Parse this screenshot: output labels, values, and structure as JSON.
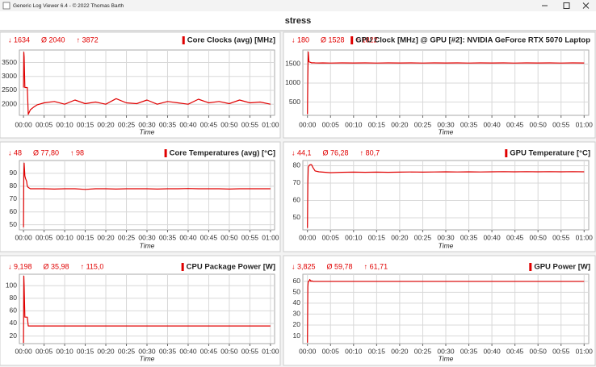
{
  "window_title": "Generic Log Viewer 6.4 - © 2022 Thomas Barth",
  "header": "stress",
  "chart_data": [
    {
      "type": "line",
      "title": "Core Clocks (avg) [MHz]",
      "stats": [
        "↓ 1634",
        "Ø 2040",
        "↑ 3872"
      ],
      "xlabel": "Time",
      "color": "#e00000",
      "x": [
        0,
        5,
        10,
        20,
        30,
        45,
        55,
        70,
        100,
        150,
        200,
        300,
        450,
        600,
        750,
        900,
        1050,
        1200,
        1350,
        1500,
        1650,
        1800,
        1950,
        2100,
        2250,
        2400,
        2550,
        2700,
        2850,
        3000,
        3150,
        3300,
        3450,
        3600
      ],
      "values": [
        2600,
        3872,
        3700,
        2600,
        2600,
        2600,
        2600,
        1634,
        1800,
        1900,
        1980,
        2050,
        2100,
        2000,
        2150,
        2020,
        2080,
        2000,
        2200,
        2050,
        2020,
        2150,
        2000,
        2100,
        2050,
        2000,
        2180,
        2050,
        2100,
        2020,
        2150,
        2050,
        2080,
        2000
      ],
      "xlim": [
        -60,
        3660
      ],
      "ylim": [
        1600,
        3950
      ],
      "yticks": [
        2000,
        2500,
        3000,
        3500
      ],
      "xticks": [
        {
          "value": 0,
          "label": "00:00"
        },
        {
          "value": 300,
          "label": "00:05"
        },
        {
          "value": 600,
          "label": "00:10"
        },
        {
          "value": 900,
          "label": "00:15"
        },
        {
          "value": 1200,
          "label": "00:20"
        },
        {
          "value": 1500,
          "label": "00:25"
        },
        {
          "value": 1800,
          "label": "00:30"
        },
        {
          "value": 2100,
          "label": "00:35"
        },
        {
          "value": 2400,
          "label": "00:40"
        },
        {
          "value": 2700,
          "label": "00:45"
        },
        {
          "value": 3000,
          "label": "00:50"
        },
        {
          "value": 3300,
          "label": "00:55"
        },
        {
          "value": 3600,
          "label": "01:00"
        }
      ]
    },
    {
      "type": "line",
      "title": "GPU Clock [MHz] @ GPU [#2]: NVIDIA GeForce RTX 5070 Laptop",
      "stats": [
        "↓ 180",
        "Ø 1528",
        "↑ 1822"
      ],
      "xlabel": "Time",
      "color": "#e00000",
      "x": [
        0,
        5,
        10,
        20,
        30,
        45,
        55,
        70,
        100,
        150,
        200,
        300,
        450,
        600,
        750,
        900,
        1050,
        1200,
        1350,
        1500,
        1650,
        1800,
        1950,
        2100,
        2250,
        2400,
        2550,
        2700,
        2850,
        3000,
        3150,
        3300,
        3450,
        3600
      ],
      "values": [
        180,
        1200,
        1822,
        1560,
        1550,
        1540,
        1530,
        1535,
        1530,
        1528,
        1530,
        1525,
        1530,
        1528,
        1530,
        1525,
        1530,
        1528,
        1530,
        1525,
        1530,
        1528,
        1530,
        1525,
        1530,
        1528,
        1530,
        1525,
        1530,
        1528,
        1530,
        1525,
        1530,
        1528
      ],
      "xlim": [
        -60,
        3660
      ],
      "ylim": [
        150,
        1870
      ],
      "yticks": [
        500,
        1000,
        1500
      ],
      "xticks": [
        {
          "value": 0,
          "label": "00:00"
        },
        {
          "value": 300,
          "label": "00:05"
        },
        {
          "value": 600,
          "label": "00:10"
        },
        {
          "value": 900,
          "label": "00:15"
        },
        {
          "value": 1200,
          "label": "00:20"
        },
        {
          "value": 1500,
          "label": "00:25"
        },
        {
          "value": 1800,
          "label": "00:30"
        },
        {
          "value": 2100,
          "label": "00:35"
        },
        {
          "value": 2400,
          "label": "00:40"
        },
        {
          "value": 2700,
          "label": "00:45"
        },
        {
          "value": 3000,
          "label": "00:50"
        },
        {
          "value": 3300,
          "label": "00:55"
        },
        {
          "value": 3600,
          "label": "01:00"
        }
      ]
    },
    {
      "type": "line",
      "title": "Core Temperatures (avg) [°C]",
      "stats": [
        "↓ 48",
        "Ø 77,80",
        "↑ 98"
      ],
      "xlabel": "Time",
      "color": "#e00000",
      "x": [
        0,
        5,
        10,
        20,
        30,
        45,
        55,
        70,
        100,
        150,
        200,
        300,
        450,
        600,
        750,
        900,
        1050,
        1200,
        1350,
        1500,
        1650,
        1800,
        1950,
        2100,
        2250,
        2400,
        2550,
        2700,
        2850,
        3000,
        3150,
        3300,
        3450,
        3600
      ],
      "values": [
        48,
        90,
        98,
        88,
        86,
        84,
        80,
        79,
        78,
        78,
        78,
        78,
        77.8,
        78,
        78,
        77.5,
        78,
        78,
        77.8,
        78,
        78,
        78,
        77.8,
        78,
        78,
        78.2,
        78,
        78,
        78,
        77.8,
        78,
        78,
        78,
        78
      ],
      "xlim": [
        -60,
        3660
      ],
      "ylim": [
        46,
        100
      ],
      "yticks": [
        50,
        60,
        70,
        80,
        90
      ],
      "xticks": [
        {
          "value": 0,
          "label": "00:00"
        },
        {
          "value": 300,
          "label": "00:05"
        },
        {
          "value": 600,
          "label": "00:10"
        },
        {
          "value": 900,
          "label": "00:15"
        },
        {
          "value": 1200,
          "label": "00:20"
        },
        {
          "value": 1500,
          "label": "00:25"
        },
        {
          "value": 1800,
          "label": "00:30"
        },
        {
          "value": 2100,
          "label": "00:35"
        },
        {
          "value": 2400,
          "label": "00:40"
        },
        {
          "value": 2700,
          "label": "00:45"
        },
        {
          "value": 3000,
          "label": "00:50"
        },
        {
          "value": 3300,
          "label": "00:55"
        },
        {
          "value": 3600,
          "label": "01:00"
        }
      ]
    },
    {
      "type": "line",
      "title": "GPU Temperature [°C]",
      "stats": [
        "↓ 44,1",
        "Ø 76,28",
        "↑ 80,7"
      ],
      "xlabel": "Time",
      "color": "#e00000",
      "x": [
        0,
        5,
        10,
        20,
        30,
        45,
        55,
        70,
        100,
        150,
        200,
        300,
        450,
        600,
        750,
        900,
        1050,
        1200,
        1350,
        1500,
        1650,
        1800,
        1950,
        2100,
        2250,
        2400,
        2550,
        2700,
        2850,
        3000,
        3150,
        3300,
        3450,
        3600
      ],
      "values": [
        44.1,
        70,
        79,
        80,
        80.5,
        80.7,
        80.5,
        79,
        77,
        76.5,
        76.3,
        76,
        76.2,
        76.3,
        76.2,
        76.3,
        76.2,
        76.3,
        76.4,
        76.3,
        76.4,
        76.5,
        76.4,
        76.5,
        76.4,
        76.5,
        76.6,
        76.5,
        76.6,
        76.5,
        76.6,
        76.5,
        76.6,
        76.5
      ],
      "xlim": [
        -60,
        3660
      ],
      "ylim": [
        43,
        83
      ],
      "yticks": [
        50,
        60,
        70,
        80
      ],
      "xticks": [
        {
          "value": 0,
          "label": "00:00"
        },
        {
          "value": 300,
          "label": "00:05"
        },
        {
          "value": 600,
          "label": "00:10"
        },
        {
          "value": 900,
          "label": "00:15"
        },
        {
          "value": 1200,
          "label": "00:20"
        },
        {
          "value": 1500,
          "label": "00:25"
        },
        {
          "value": 1800,
          "label": "00:30"
        },
        {
          "value": 2100,
          "label": "00:35"
        },
        {
          "value": 2400,
          "label": "00:40"
        },
        {
          "value": 2700,
          "label": "00:45"
        },
        {
          "value": 3000,
          "label": "00:50"
        },
        {
          "value": 3300,
          "label": "00:55"
        },
        {
          "value": 3600,
          "label": "01:00"
        }
      ]
    },
    {
      "type": "line",
      "title": "CPU Package Power [W]",
      "stats": [
        "↓ 9,198",
        "Ø 35,98",
        "↑ 115,0"
      ],
      "xlabel": "Time",
      "color": "#e00000",
      "x": [
        0,
        5,
        10,
        20,
        30,
        45,
        55,
        70,
        100,
        150,
        200,
        300,
        450,
        600,
        750,
        900,
        1050,
        1200,
        1350,
        1500,
        1650,
        1800,
        1950,
        2100,
        2250,
        2400,
        2550,
        2700,
        2850,
        3000,
        3150,
        3300,
        3450,
        3600
      ],
      "values": [
        9.198,
        115,
        100,
        50,
        50,
        50,
        50,
        36,
        36,
        36,
        36,
        36,
        36,
        36,
        36,
        36,
        36,
        36,
        36,
        36,
        36,
        36,
        36,
        36,
        36,
        36,
        36,
        36,
        36,
        36,
        36,
        36,
        36,
        36
      ],
      "xlim": [
        -60,
        3660
      ],
      "ylim": [
        8,
        118
      ],
      "yticks": [
        20,
        40,
        60,
        80,
        100
      ],
      "xticks": [
        {
          "value": 0,
          "label": "00:00"
        },
        {
          "value": 300,
          "label": "00:05"
        },
        {
          "value": 600,
          "label": "00:10"
        },
        {
          "value": 900,
          "label": "00:15"
        },
        {
          "value": 1200,
          "label": "00:20"
        },
        {
          "value": 1500,
          "label": "00:25"
        },
        {
          "value": 1800,
          "label": "00:30"
        },
        {
          "value": 2100,
          "label": "00:35"
        },
        {
          "value": 2400,
          "label": "00:40"
        },
        {
          "value": 2700,
          "label": "00:45"
        },
        {
          "value": 3000,
          "label": "00:50"
        },
        {
          "value": 3300,
          "label": "00:55"
        },
        {
          "value": 3600,
          "label": "01:00"
        }
      ]
    },
    {
      "type": "line",
      "title": "GPU Power [W]",
      "stats": [
        "↓ 3,825",
        "Ø 59,78",
        "↑ 61,71"
      ],
      "xlabel": "Time",
      "color": "#e00000",
      "x": [
        0,
        5,
        10,
        20,
        30,
        45,
        55,
        70,
        100,
        150,
        200,
        300,
        450,
        600,
        750,
        900,
        1050,
        1200,
        1350,
        1500,
        1650,
        1800,
        1950,
        2100,
        2250,
        2400,
        2550,
        2700,
        2850,
        3000,
        3150,
        3300,
        3450,
        3600
      ],
      "values": [
        3.825,
        55,
        60,
        60,
        61.71,
        60,
        60.5,
        60,
        60,
        60,
        60,
        60,
        60,
        60,
        60,
        60,
        60,
        60,
        60,
        60,
        60,
        60,
        60,
        60,
        60,
        60,
        60,
        60,
        60,
        60,
        60,
        60,
        60,
        60
      ],
      "xlim": [
        -60,
        3660
      ],
      "ylim": [
        3,
        66.5
      ],
      "yticks": [
        10,
        20,
        30,
        40,
        50,
        60
      ],
      "xticks": [
        {
          "value": 0,
          "label": "00:00"
        },
        {
          "value": 300,
          "label": "00:05"
        },
        {
          "value": 600,
          "label": "00:10"
        },
        {
          "value": 900,
          "label": "00:15"
        },
        {
          "value": 1200,
          "label": "00:20"
        },
        {
          "value": 1500,
          "label": "00:25"
        },
        {
          "value": 1800,
          "label": "00:30"
        },
        {
          "value": 2100,
          "label": "00:35"
        },
        {
          "value": 2400,
          "label": "00:40"
        },
        {
          "value": 2700,
          "label": "00:45"
        },
        {
          "value": 3000,
          "label": "00:50"
        },
        {
          "value": 3300,
          "label": "00:55"
        },
        {
          "value": 3600,
          "label": "01:00"
        }
      ]
    }
  ]
}
